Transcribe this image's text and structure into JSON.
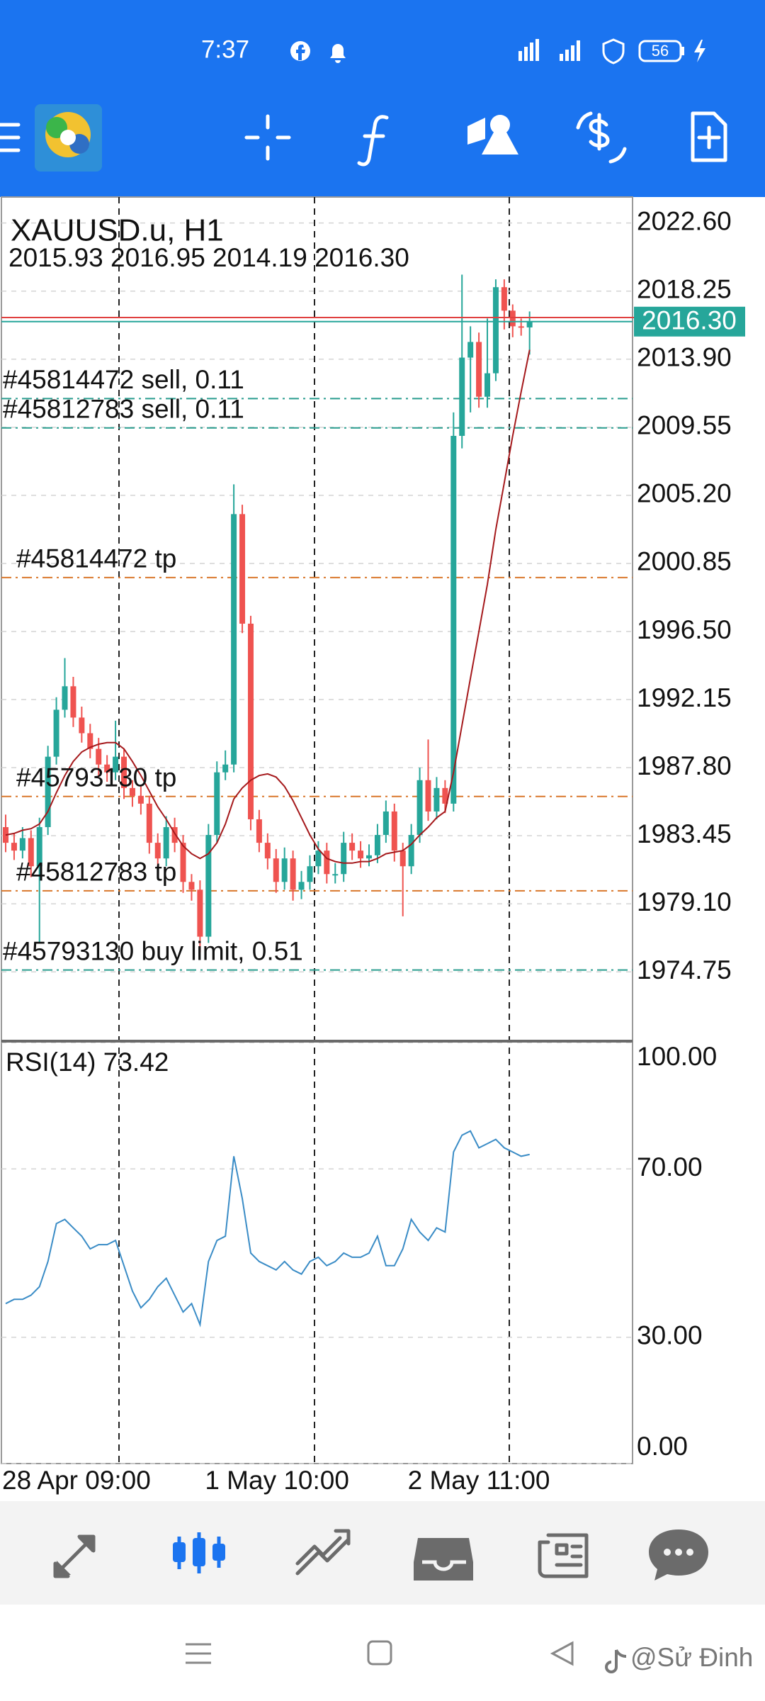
{
  "status_bar": {
    "time": "7:37",
    "battery": "56"
  },
  "watermark": "@Sử Đinh",
  "chart_data": [
    {
      "type": "candlestick",
      "title": "XAUUSD.u, H1",
      "ohlc_text": "2015.93 2016.95 2014.19 2016.30",
      "categories": [
        "28 Apr 09:00",
        null,
        null,
        null,
        null,
        null,
        null,
        null,
        null,
        null,
        null,
        null,
        null,
        null,
        null,
        null,
        null,
        null,
        null,
        null,
        null,
        null,
        null,
        null,
        "1 May 10:00",
        null,
        null,
        null,
        null,
        null,
        null,
        null,
        null,
        null,
        null,
        null,
        null,
        null,
        null,
        null,
        null,
        null,
        null,
        null,
        null,
        null,
        null,
        null,
        "2 May 11:00",
        null,
        null,
        null,
        null,
        null,
        null,
        null,
        null,
        null,
        null,
        null,
        null,
        null,
        null
      ],
      "open": [
        1984.0,
        1983.0,
        1982.5,
        1983.3,
        1981.5,
        1984.0,
        1988.5,
        1991.5,
        1993.0,
        1991.0,
        1990.0,
        1989.0,
        1988.0,
        1987.5,
        1988.5,
        1986.5,
        1986.0,
        1985.5,
        1983.0,
        1982.0,
        1984.0,
        1983.0,
        1980.5,
        1980.0,
        1977.0,
        1983.5,
        1987.5,
        1988.0,
        2004.0,
        1997.0,
        1984.5,
        1983.0,
        1982.0,
        1980.5,
        1982.0,
        1980.0,
        1980.5,
        1981.5,
        1982.5,
        1981.0,
        1981.0,
        1983.0,
        1982.5,
        1982.0,
        1982.2,
        1983.5,
        1985.0,
        1982.5,
        1981.5,
        1983.5,
        1987.0,
        1985.0,
        1986.5,
        1985.5,
        2009.0,
        2014.0,
        2015.0,
        2011.5,
        2013.0,
        2018.5,
        2017.0,
        2016.0,
        2015.93
      ],
      "high": [
        1984.8,
        1983.6,
        1984.0,
        1983.8,
        1984.6,
        1989.2,
        1992.3,
        1994.8,
        1993.6,
        1991.7,
        1990.6,
        1989.7,
        1988.6,
        1990.8,
        1989.0,
        1987.0,
        1986.6,
        1986.0,
        1983.6,
        1984.7,
        1984.6,
        1983.5,
        1981.0,
        1980.6,
        1984.2,
        1988.2,
        1988.9,
        2005.9,
        2004.6,
        1997.5,
        1985.1,
        1983.6,
        1982.6,
        1982.7,
        1982.5,
        1981.2,
        1982.2,
        1983.1,
        1983.0,
        1981.7,
        1983.7,
        1983.6,
        1983.1,
        1982.9,
        1984.2,
        1985.7,
        1985.5,
        1983.0,
        1984.2,
        1987.8,
        1989.6,
        1987.2,
        1987.0,
        2010.5,
        2019.3,
        2016.0,
        2015.6,
        2016.5,
        2019.0,
        2019.0,
        2017.4,
        2016.5,
        2016.95
      ],
      "low": [
        1982.4,
        1981.9,
        1982.0,
        1980.8,
        1976.6,
        1983.5,
        1988.0,
        1991.0,
        1990.4,
        1989.4,
        1988.4,
        1987.2,
        1986.9,
        1987.0,
        1985.8,
        1985.3,
        1984.8,
        1982.3,
        1981.4,
        1981.5,
        1982.4,
        1979.8,
        1979.3,
        1976.0,
        1976.6,
        1983.0,
        1987.0,
        1987.5,
        1996.4,
        1983.8,
        1982.4,
        1981.3,
        1979.8,
        1980.0,
        1979.3,
        1979.4,
        1980.0,
        1981.0,
        1980.4,
        1980.4,
        1980.5,
        1981.9,
        1981.4,
        1981.5,
        1981.7,
        1983.0,
        1981.8,
        1978.3,
        1981.0,
        1983.0,
        1984.4,
        1984.5,
        1984.9,
        1985.0,
        2008.2,
        2010.5,
        2010.8,
        2010.8,
        2012.5,
        2015.8,
        2015.3,
        2015.4,
        2014.19
      ],
      "close": [
        1983.0,
        1982.5,
        1983.3,
        1981.5,
        1984.0,
        1988.5,
        1991.5,
        1993.0,
        1991.0,
        1990.0,
        1989.0,
        1988.0,
        1987.5,
        1988.5,
        1986.5,
        1986.0,
        1985.5,
        1983.0,
        1982.0,
        1984.0,
        1983.0,
        1980.5,
        1980.0,
        1977.0,
        1983.5,
        1987.5,
        1988.0,
        2004.0,
        1997.0,
        1984.5,
        1983.0,
        1982.0,
        1980.5,
        1982.0,
        1980.0,
        1980.5,
        1981.5,
        1982.5,
        1981.0,
        1981.0,
        1983.0,
        1982.5,
        1982.0,
        1982.2,
        1983.5,
        1985.0,
        1982.5,
        1981.5,
        1983.5,
        1987.0,
        1985.0,
        1986.5,
        1985.5,
        2009.0,
        2014.0,
        2015.0,
        2011.5,
        2013.0,
        2018.5,
        2017.0,
        2016.0,
        2015.93,
        2016.3
      ],
      "ma": [
        1983.5,
        1983.6,
        1983.8,
        1983.9,
        1984.2,
        1985.0,
        1986.2,
        1987.3,
        1988.2,
        1988.8,
        1989.1,
        1989.3,
        1989.4,
        1989.4,
        1989.0,
        1988.2,
        1987.3,
        1986.3,
        1985.3,
        1984.5,
        1983.6,
        1982.8,
        1982.3,
        1982.0,
        1982.3,
        1983.0,
        1984.2,
        1985.8,
        1986.5,
        1987.0,
        1987.3,
        1987.4,
        1987.2,
        1986.6,
        1985.7,
        1984.6,
        1983.5,
        1982.6,
        1982.0,
        1981.8,
        1981.7,
        1981.7,
        1981.8,
        1981.8,
        1982.0,
        1982.3,
        1982.4,
        1982.5,
        1982.9,
        1983.5,
        1984.0,
        1984.6,
        1985.0,
        1987.5,
        1990.5,
        1993.5,
        1996.5,
        1999.5,
        2003.0,
        2006.0,
        2009.0,
        2011.8,
        2014.5
      ],
      "ma_color": "#a5191c",
      "up_color": "#26a69a",
      "down_color": "#ef5350",
      "ylim": [
        1970.37,
        2024.26
      ],
      "yticks": [
        {
          "value": 2022.6,
          "label": "2022.60"
        },
        2018.25,
        {
          "value": 2013.9,
          "label": "2013.90"
        },
        2009.55,
        {
          "value": 2005.2,
          "label": "2005.20"
        },
        2000.85,
        {
          "value": 1996.5,
          "label": "1996.50"
        },
        1992.15,
        {
          "value": 1987.8,
          "label": "1987.80"
        },
        1983.45,
        {
          "value": 1979.1,
          "label": "1979.10"
        },
        1974.75
      ],
      "grid": true,
      "orders": [
        {
          "label": "#45814472 sell, 0.11",
          "price": 2011.38,
          "style": "order",
          "color": "#2a9d8f"
        },
        {
          "label": "#45812783 sell, 0.11",
          "price": 2009.51,
          "style": "order",
          "color": "#2a9d8f"
        },
        {
          "label": "#45814472 tp",
          "price": 1999.95,
          "style": "tp",
          "color": "#d9772b"
        },
        {
          "label": "#45793130 tp",
          "price": 1985.96,
          "style": "tp",
          "color": "#d9772b"
        },
        {
          "label": "#45812783 tp",
          "price": 1979.93,
          "style": "tp",
          "color": "#d9772b"
        },
        {
          "label": "#45793130 buy limit, 0.51",
          "price": 1974.87,
          "style": "order",
          "color": "#2a9d8f"
        }
      ],
      "last_price": {
        "value": 2016.3,
        "label": "2016.30"
      },
      "ask": 2016.56,
      "ask_color": "#e0403f"
    },
    {
      "type": "line",
      "title": "RSI(14) 73.42",
      "values": [
        38,
        39,
        39,
        40,
        42,
        48,
        57,
        58,
        56,
        54,
        51,
        52,
        52,
        53,
        47,
        41,
        37,
        39,
        42,
        44,
        40,
        36,
        38,
        33,
        48,
        53,
        54,
        73,
        63,
        50,
        48,
        47,
        46,
        48,
        46,
        45,
        48,
        49,
        47,
        48,
        50,
        49,
        49,
        50,
        54,
        47,
        47,
        51,
        58,
        55,
        53,
        56,
        55,
        74,
        78,
        79,
        75,
        76,
        77,
        75,
        74,
        73,
        73.42
      ],
      "color": "#3a8cc6",
      "ylim": [
        0,
        100
      ],
      "yticks": [
        {
          "value": 100,
          "label": "100.00"
        },
        {
          "value": 70,
          "label": "70.00"
        },
        {
          "value": 30,
          "label": "30.00"
        },
        {
          "value": 0,
          "label": "0.00"
        }
      ],
      "grid": true
    }
  ]
}
